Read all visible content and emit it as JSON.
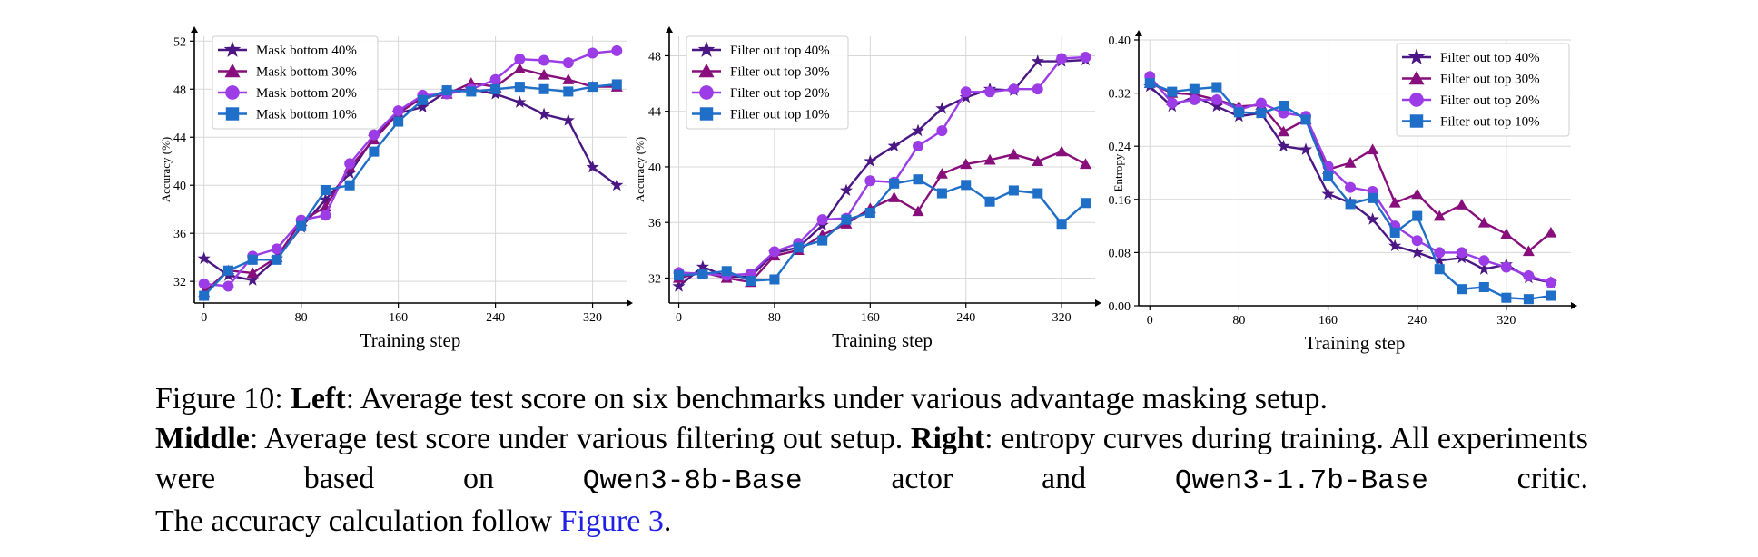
{
  "colors": {
    "c40": "#4b1784",
    "c30": "#880f7b",
    "c20": "#9b3ce6",
    "c10": "#1f6fc9",
    "grid": "#d7d7d7",
    "link": "#1f1fe6"
  },
  "chart_data": [
    {
      "type": "line",
      "xlabel": "Training step",
      "ylabel": "Accuracy (%)",
      "xlim": [
        -8,
        348
      ],
      "ylim": [
        30.2,
        52.4
      ],
      "xticks": [
        0,
        80,
        160,
        240,
        320
      ],
      "yticks": [
        32,
        36,
        40,
        44,
        48,
        52
      ],
      "ytick_labels": [
        "32",
        "36",
        "40",
        "44",
        "48",
        "52"
      ],
      "grid": true,
      "legend_position": "top-left",
      "series": [
        {
          "name": "Mask bottom 40%",
          "marker": "star",
          "color_key": "c40",
          "x": [
            0,
            20,
            40,
            60,
            80,
            100,
            120,
            140,
            160,
            180,
            200,
            220,
            240,
            260,
            280,
            300,
            320,
            340
          ],
          "y": [
            33.9,
            32.5,
            32.1,
            33.9,
            36.5,
            38.8,
            41.0,
            44.0,
            46.0,
            46.5,
            47.8,
            48.0,
            47.6,
            46.9,
            45.9,
            45.4,
            41.5,
            40.0
          ]
        },
        {
          "name": "Mask bottom 30%",
          "marker": "triangle",
          "color_key": "c30",
          "x": [
            0,
            20,
            40,
            60,
            80,
            100,
            120,
            140,
            160,
            180,
            200,
            220,
            240,
            260,
            280,
            300,
            320,
            340
          ],
          "y": [
            31.1,
            32.9,
            32.7,
            34.0,
            37.0,
            38.2,
            41.5,
            43.8,
            46.0,
            47.3,
            47.6,
            48.5,
            48.2,
            49.7,
            49.2,
            48.8,
            48.2,
            48.2
          ]
        },
        {
          "name": "Mask bottom 20%",
          "marker": "circle",
          "color_key": "c20",
          "x": [
            0,
            20,
            40,
            60,
            80,
            100,
            120,
            140,
            160,
            180,
            200,
            220,
            240,
            260,
            280,
            300,
            320,
            340
          ],
          "y": [
            31.8,
            31.6,
            34.1,
            34.7,
            37.1,
            37.5,
            41.8,
            44.2,
            46.2,
            47.5,
            47.6,
            48.0,
            48.8,
            50.5,
            50.4,
            50.2,
            51.0,
            51.2
          ]
        },
        {
          "name": "Mask bottom 10%",
          "marker": "square",
          "color_key": "c10",
          "x": [
            0,
            20,
            40,
            60,
            80,
            100,
            120,
            140,
            160,
            180,
            200,
            220,
            240,
            260,
            280,
            300,
            320,
            340
          ],
          "y": [
            30.8,
            32.9,
            33.8,
            33.8,
            36.6,
            39.6,
            40.0,
            42.8,
            45.3,
            47.1,
            47.9,
            47.8,
            48.0,
            48.2,
            48.0,
            47.8,
            48.2,
            48.4
          ]
        }
      ]
    },
    {
      "type": "line",
      "xlabel": "Training step",
      "ylabel": "Accuracy (%)",
      "xlim": [
        -8,
        348
      ],
      "ylim": [
        30.2,
        49.4
      ],
      "xticks": [
        0,
        80,
        160,
        240,
        320
      ],
      "yticks": [
        32,
        36,
        40,
        44,
        48
      ],
      "ytick_labels": [
        "32",
        "36",
        "40",
        "44",
        "48"
      ],
      "grid": true,
      "legend_position": "top-left",
      "series": [
        {
          "name": "Filter out top 40%",
          "marker": "star",
          "color_key": "c40",
          "x": [
            0,
            20,
            40,
            60,
            80,
            100,
            120,
            140,
            160,
            180,
            200,
            220,
            240,
            260,
            280,
            300,
            320,
            340
          ],
          "y": [
            31.4,
            32.8,
            32.1,
            32.1,
            33.8,
            34.2,
            35.8,
            38.3,
            40.4,
            41.5,
            42.6,
            44.2,
            45.0,
            45.6,
            45.5,
            47.6,
            47.6,
            47.7
          ]
        },
        {
          "name": "Filter out top 30%",
          "marker": "triangle",
          "color_key": "c30",
          "x": [
            0,
            20,
            40,
            60,
            80,
            100,
            120,
            140,
            160,
            180,
            200,
            220,
            240,
            260,
            280,
            300,
            320,
            340
          ],
          "y": [
            32.0,
            32.4,
            32.0,
            31.7,
            33.6,
            34.0,
            35.1,
            35.9,
            37.0,
            37.8,
            36.8,
            39.5,
            40.2,
            40.5,
            40.9,
            40.4,
            41.1,
            40.2
          ]
        },
        {
          "name": "Filter out top 20%",
          "marker": "circle",
          "color_key": "c20",
          "x": [
            0,
            20,
            40,
            60,
            80,
            100,
            120,
            140,
            160,
            180,
            200,
            220,
            240,
            260,
            280,
            300,
            320,
            340
          ],
          "y": [
            32.4,
            32.3,
            32.2,
            32.3,
            33.9,
            34.5,
            36.2,
            36.3,
            39.0,
            38.9,
            41.5,
            42.6,
            45.4,
            45.4,
            45.6,
            45.6,
            47.8,
            47.9
          ]
        },
        {
          "name": "Filter out top 10%",
          "marker": "square",
          "color_key": "c10",
          "x": [
            0,
            20,
            40,
            60,
            80,
            100,
            120,
            140,
            160,
            180,
            200,
            220,
            240,
            260,
            280,
            300,
            320,
            340
          ],
          "y": [
            32.2,
            32.3,
            32.5,
            31.8,
            31.9,
            34.2,
            34.7,
            36.2,
            36.7,
            38.8,
            39.1,
            38.1,
            38.7,
            37.5,
            38.3,
            38.1,
            35.9,
            37.4
          ]
        }
      ]
    },
    {
      "type": "line",
      "xlabel": "Training step",
      "ylabel": "Entropy",
      "xlim": [
        -10,
        378
      ],
      "ylim": [
        0.0,
        0.4
      ],
      "xticks": [
        0,
        80,
        160,
        240,
        320
      ],
      "yticks": [
        0.0,
        0.08,
        0.16,
        0.24,
        0.32,
        0.4
      ],
      "ytick_labels": [
        "0.00",
        "0.08",
        "0.16",
        "0.24",
        "0.32",
        "0.40"
      ],
      "grid": true,
      "legend_position": "top-right",
      "series": [
        {
          "name": "Filter out top 40%",
          "marker": "star",
          "color_key": "c40",
          "x": [
            0,
            20,
            40,
            60,
            80,
            100,
            120,
            140,
            160,
            180,
            200,
            220,
            240,
            260,
            280,
            300,
            320,
            340,
            360
          ],
          "y": [
            0.33,
            0.3,
            0.315,
            0.3,
            0.285,
            0.29,
            0.24,
            0.235,
            0.168,
            0.155,
            0.13,
            0.09,
            0.08,
            0.068,
            0.072,
            0.055,
            0.062,
            0.042,
            0.035
          ]
        },
        {
          "name": "Filter out top 30%",
          "marker": "triangle",
          "color_key": "c30",
          "x": [
            0,
            20,
            40,
            60,
            80,
            100,
            120,
            140,
            160,
            180,
            200,
            220,
            240,
            260,
            280,
            300,
            320,
            340,
            360
          ],
          "y": [
            0.335,
            0.32,
            0.318,
            0.31,
            0.3,
            0.302,
            0.262,
            0.28,
            0.205,
            0.215,
            0.235,
            0.155,
            0.168,
            0.135,
            0.152,
            0.125,
            0.108,
            0.082,
            0.11
          ]
        },
        {
          "name": "Filter out top 20%",
          "marker": "circle",
          "color_key": "c20",
          "x": [
            0,
            20,
            40,
            60,
            80,
            100,
            120,
            140,
            160,
            180,
            200,
            220,
            240,
            260,
            280,
            300,
            320,
            340,
            360
          ],
          "y": [
            0.345,
            0.305,
            0.31,
            0.31,
            0.295,
            0.305,
            0.29,
            0.285,
            0.21,
            0.178,
            0.172,
            0.12,
            0.098,
            0.08,
            0.08,
            0.068,
            0.058,
            0.045,
            0.035
          ]
        },
        {
          "name": "Filter out top 10%",
          "marker": "square",
          "color_key": "c10",
          "x": [
            0,
            20,
            40,
            60,
            80,
            100,
            120,
            140,
            160,
            180,
            200,
            220,
            240,
            260,
            280,
            300,
            320,
            340,
            360
          ],
          "y": [
            0.335,
            0.322,
            0.326,
            0.329,
            0.291,
            0.29,
            0.301,
            0.28,
            0.195,
            0.153,
            0.162,
            0.11,
            0.135,
            0.055,
            0.025,
            0.028,
            0.012,
            0.01,
            0.015
          ]
        }
      ]
    }
  ],
  "caption": {
    "figure_label": "Figure 10:",
    "left_label": "Left",
    "left_text": ": Average test score on six benchmarks under various advantage masking setup.",
    "middle_label": "Middle",
    "middle_text": ": Average test score under various filtering out setup.",
    "right_label": "Right",
    "right_text": ": entropy curves during training. All experiments were based on",
    "actor_model": "Qwen3-8b-Base",
    "actor_text": "actor and",
    "critic_model": "Qwen3-1.7b-Base",
    "critic_text": "critic.",
    "accuracy_text": "The accuracy calculation follow",
    "figure_link": "Figure 3",
    "end_period": "."
  }
}
